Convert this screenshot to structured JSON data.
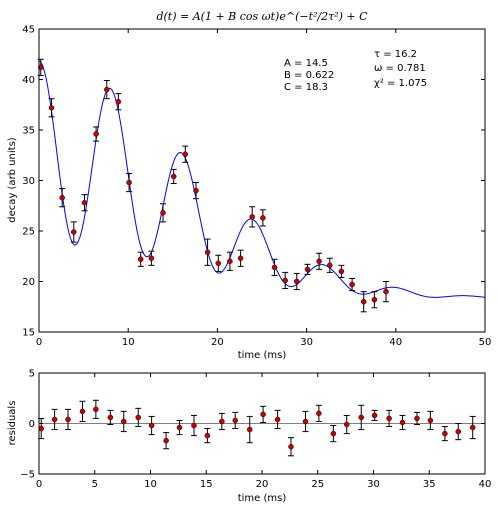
{
  "title": "d(t) = A(1 + B cos ωt)e^(−t²/2τ²) + C",
  "params_left": [
    "A = 14.5",
    "B = 0.622",
    "C = 18.3"
  ],
  "params_right": [
    "τ = 16.2",
    "ω = 0.781",
    "χ² = 1.075"
  ],
  "colors": {
    "model": "#0000ff",
    "points": "#cc0000"
  },
  "chart_data": [
    {
      "type": "scatter",
      "title": "d(t) = A(1 + B cos ωt)e^(−t²/2τ²) + C",
      "xlabel": "time (ms)",
      "ylabel": "decay (arb units)",
      "xlim": [
        0,
        50
      ],
      "ylim": [
        15,
        45
      ],
      "xticks": [
        0,
        10,
        20,
        30,
        40,
        50
      ],
      "yticks": [
        15,
        20,
        25,
        30,
        35,
        40,
        45
      ],
      "grid": false,
      "model": {
        "name": "fit",
        "A": 14.5,
        "B": 0.622,
        "C": 18.3,
        "tau": 16.2,
        "omega": 0.781
      },
      "points": [
        {
          "x": 0.2,
          "y": 41.2,
          "err": 0.8
        },
        {
          "x": 1.4,
          "y": 37.2,
          "err": 0.9
        },
        {
          "x": 2.6,
          "y": 28.3,
          "err": 0.9
        },
        {
          "x": 3.9,
          "y": 24.9,
          "err": 1.0
        },
        {
          "x": 5.1,
          "y": 27.8,
          "err": 0.8
        },
        {
          "x": 6.4,
          "y": 34.6,
          "err": 0.7
        },
        {
          "x": 7.6,
          "y": 39.0,
          "err": 0.9
        },
        {
          "x": 8.9,
          "y": 37.8,
          "err": 0.8
        },
        {
          "x": 10.1,
          "y": 29.8,
          "err": 0.9
        },
        {
          "x": 11.4,
          "y": 22.2,
          "err": 0.7
        },
        {
          "x": 12.6,
          "y": 22.3,
          "err": 0.7
        },
        {
          "x": 13.9,
          "y": 26.8,
          "err": 0.9
        },
        {
          "x": 15.1,
          "y": 30.4,
          "err": 0.7
        },
        {
          "x": 16.4,
          "y": 32.6,
          "err": 0.8
        },
        {
          "x": 17.6,
          "y": 29.0,
          "err": 0.8
        },
        {
          "x": 18.9,
          "y": 22.9,
          "err": 1.3
        },
        {
          "x": 20.1,
          "y": 21.8,
          "err": 0.8
        },
        {
          "x": 21.4,
          "y": 22.0,
          "err": 0.9
        },
        {
          "x": 22.6,
          "y": 22.3,
          "err": 0.8
        },
        {
          "x": 23.9,
          "y": 26.4,
          "err": 1.0
        },
        {
          "x": 25.1,
          "y": 26.3,
          "err": 0.8
        },
        {
          "x": 26.4,
          "y": 21.4,
          "err": 0.8
        },
        {
          "x": 27.6,
          "y": 20.1,
          "err": 0.8
        },
        {
          "x": 28.9,
          "y": 20.0,
          "err": 0.8
        },
        {
          "x": 30.1,
          "y": 21.2,
          "err": 0.5
        },
        {
          "x": 31.4,
          "y": 22.0,
          "err": 0.8
        },
        {
          "x": 32.6,
          "y": 21.6,
          "err": 0.7
        },
        {
          "x": 33.9,
          "y": 21.0,
          "err": 0.6
        },
        {
          "x": 35.1,
          "y": 19.7,
          "err": 0.6
        },
        {
          "x": 36.4,
          "y": 18.0,
          "err": 1.0
        },
        {
          "x": 37.6,
          "y": 18.2,
          "err": 0.8
        },
        {
          "x": 38.9,
          "y": 19.0,
          "err": 1.0
        }
      ]
    },
    {
      "type": "scatter",
      "xlabel": "time (ms)",
      "ylabel": "residuals",
      "xlim": [
        0,
        40
      ],
      "ylim": [
        -5,
        5
      ],
      "xticks": [
        0,
        5,
        10,
        15,
        20,
        25,
        30,
        35,
        40
      ],
      "yticks": [
        -5,
        0,
        5
      ],
      "grid": false,
      "points": [
        {
          "x": 0.2,
          "y": -0.5,
          "err": 1.0
        },
        {
          "x": 1.4,
          "y": 0.4,
          "err": 1.0
        },
        {
          "x": 2.6,
          "y": 0.4,
          "err": 1.0
        },
        {
          "x": 3.9,
          "y": 1.2,
          "err": 1.0
        },
        {
          "x": 5.1,
          "y": 1.4,
          "err": 0.9
        },
        {
          "x": 6.4,
          "y": 0.6,
          "err": 0.7
        },
        {
          "x": 7.6,
          "y": 0.2,
          "err": 1.0
        },
        {
          "x": 8.9,
          "y": 0.6,
          "err": 0.9
        },
        {
          "x": 10.1,
          "y": -0.2,
          "err": 0.9
        },
        {
          "x": 11.4,
          "y": -1.7,
          "err": 0.8
        },
        {
          "x": 12.6,
          "y": -0.4,
          "err": 0.7
        },
        {
          "x": 13.9,
          "y": -0.2,
          "err": 1.0
        },
        {
          "x": 15.1,
          "y": -1.2,
          "err": 0.7
        },
        {
          "x": 16.4,
          "y": 0.2,
          "err": 0.8
        },
        {
          "x": 17.6,
          "y": 0.3,
          "err": 0.8
        },
        {
          "x": 18.9,
          "y": -0.6,
          "err": 1.3
        },
        {
          "x": 20.1,
          "y": 0.9,
          "err": 0.8
        },
        {
          "x": 21.4,
          "y": 0.4,
          "err": 0.9
        },
        {
          "x": 22.6,
          "y": -2.3,
          "err": 0.9
        },
        {
          "x": 23.9,
          "y": 0.2,
          "err": 1.0
        },
        {
          "x": 25.1,
          "y": 1.0,
          "err": 0.8
        },
        {
          "x": 26.4,
          "y": -1.0,
          "err": 0.8
        },
        {
          "x": 27.6,
          "y": -0.1,
          "err": 0.9
        },
        {
          "x": 28.9,
          "y": 0.6,
          "err": 1.2
        },
        {
          "x": 30.1,
          "y": 0.8,
          "err": 0.5
        },
        {
          "x": 31.4,
          "y": 0.5,
          "err": 0.8
        },
        {
          "x": 32.6,
          "y": 0.1,
          "err": 0.7
        },
        {
          "x": 33.9,
          "y": 0.5,
          "err": 0.6
        },
        {
          "x": 35.1,
          "y": 0.3,
          "err": 0.9
        },
        {
          "x": 36.4,
          "y": -1.0,
          "err": 0.7
        },
        {
          "x": 37.6,
          "y": -0.8,
          "err": 0.8
        },
        {
          "x": 38.9,
          "y": -0.4,
          "err": 1.1
        }
      ]
    }
  ]
}
